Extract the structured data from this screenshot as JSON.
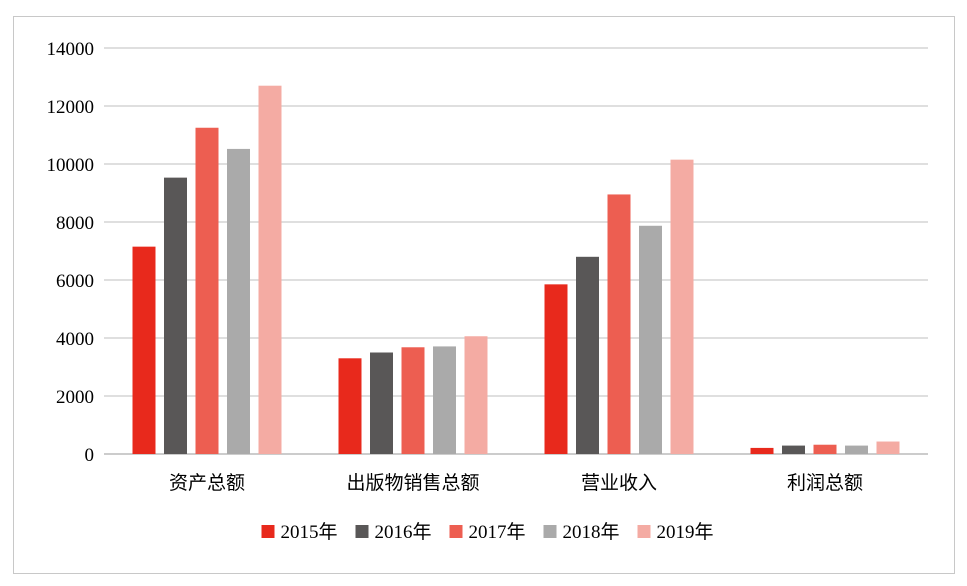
{
  "chart_data": {
    "type": "bar",
    "categories": [
      "资产总额",
      "出版物销售总额",
      "营业收入",
      "利润总额"
    ],
    "series": [
      {
        "name": "2015年",
        "color": "#e8291c",
        "values": [
          7150,
          3300,
          5850,
          210
        ]
      },
      {
        "name": "2016年",
        "color": "#595757",
        "values": [
          9530,
          3500,
          6800,
          290
        ]
      },
      {
        "name": "2017年",
        "color": "#ed5e51",
        "values": [
          11250,
          3680,
          8950,
          320
        ]
      },
      {
        "name": "2018年",
        "color": "#aaaaaa",
        "values": [
          10520,
          3710,
          7870,
          290
        ]
      },
      {
        "name": "2019年",
        "color": "#f4aba3",
        "values": [
          12700,
          4060,
          10150,
          430
        ]
      }
    ],
    "ylim": [
      0,
      14000
    ],
    "yticks": [
      "0",
      "2000",
      "4000",
      "6000",
      "8000",
      "10000",
      "12000",
      "14000"
    ],
    "grid": true,
    "legend_position": "bottom"
  }
}
